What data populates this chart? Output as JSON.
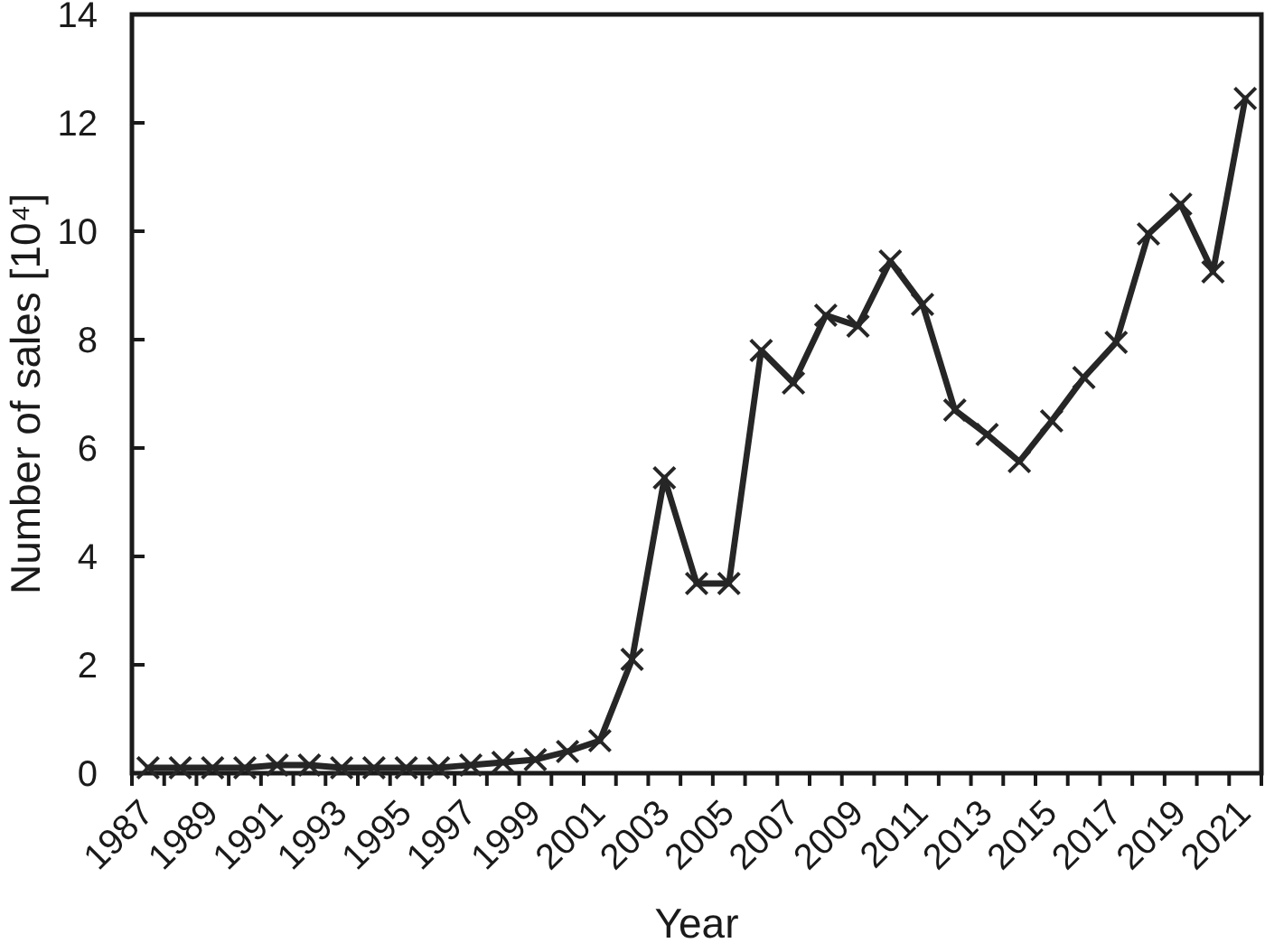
{
  "chart_data": {
    "type": "line",
    "xlabel": "Year",
    "ylabel": "Number of sales [10⁴]",
    "categories": [
      "1987",
      null,
      "1989",
      null,
      "1991",
      null,
      "1993",
      null,
      "1995",
      null,
      "1997",
      null,
      "1999",
      null,
      "2001",
      null,
      "2003",
      null,
      "2005",
      null,
      "2007",
      null,
      "2009",
      null,
      "2011",
      null,
      "2013",
      null,
      "2015",
      null,
      "2017",
      null,
      "2019",
      null,
      "2021"
    ],
    "series": [
      {
        "color": "#262626",
        "values": [
          0.1,
          0.1,
          0.1,
          0.1,
          0.15,
          0.15,
          0.1,
          0.1,
          0.1,
          0.1,
          0.15,
          0.2,
          0.25,
          0.4,
          0.6,
          2.1,
          5.45,
          3.5,
          3.5,
          7.8,
          7.2,
          8.45,
          8.25,
          9.45,
          8.65,
          6.7,
          6.25,
          5.75,
          6.5,
          7.3,
          7.95,
          9.95,
          10.5,
          9.25,
          12.45
        ]
      }
    ],
    "ylim": [
      0,
      14
    ],
    "yticks": [
      0,
      2,
      4,
      6,
      8,
      10,
      12,
      14
    ],
    "marker": "cross",
    "line_style": "solid"
  }
}
